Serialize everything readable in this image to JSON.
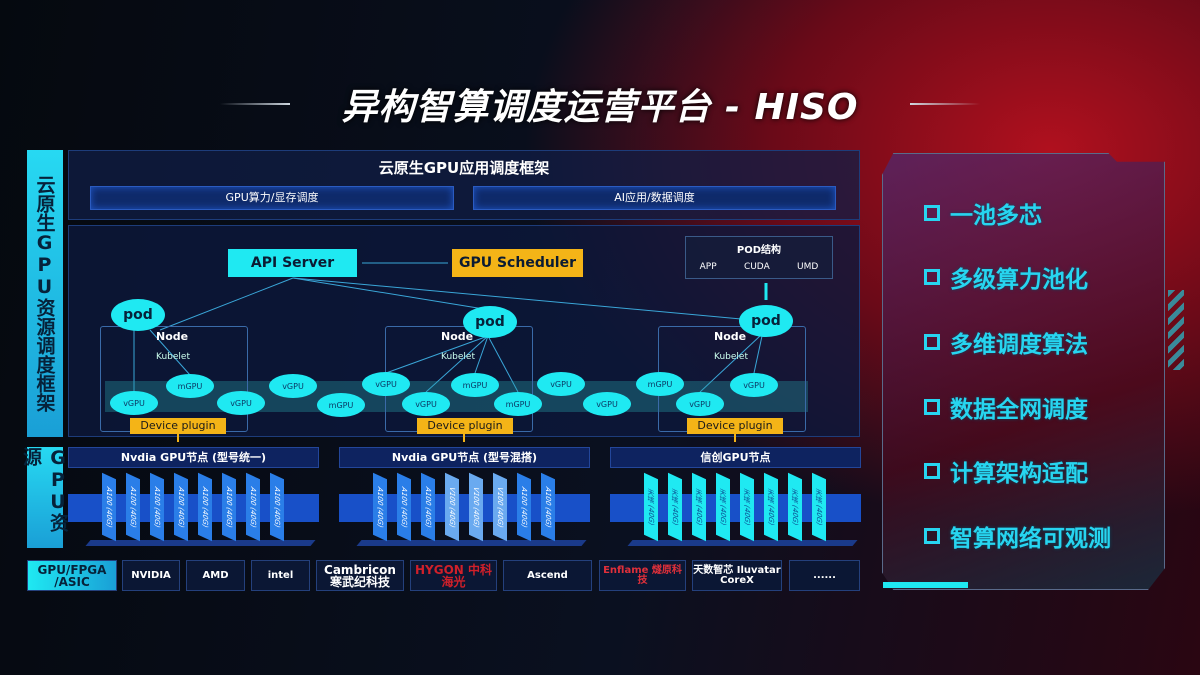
{
  "title": "异构智算调度运营平台 - HISO",
  "side_labels": {
    "framework": "云原生GPU资源调度框架",
    "resources": "GPU资源"
  },
  "app_framework": {
    "title": "云原生GPU应用调度框架",
    "left": "GPU算力/显存调度",
    "right": "AI应用/数据调度"
  },
  "control": {
    "api_server": "API Server",
    "gpu_scheduler": "GPU Scheduler"
  },
  "pod_structure": {
    "title": "POD结构",
    "items": [
      "APP",
      "CUDA",
      "UMD"
    ]
  },
  "node": {
    "label": "Node",
    "kubelet": "Kubelet",
    "pod": "pod",
    "device_plugin": "Device plugin"
  },
  "gpu_units": [
    "vGPU",
    "mGPU",
    "vGPU",
    "vGPU",
    "mGPU",
    "vGPU",
    "vGPU",
    "mGPU",
    "mGPU",
    "vGPU",
    "vGPU",
    "mGPU",
    "vGPU",
    "vGPU"
  ],
  "gpu_nodes": [
    {
      "title": "Nvdia GPU节点 (型号统一)",
      "cards": [
        "A100 (40G)",
        "A100 (40G)",
        "A100 (40G)",
        "A100 (40G)",
        "A100 (40G)",
        "A100 (40G)",
        "A100 (40G)",
        "A100 (40G)"
      ]
    },
    {
      "title": "Nvdia GPU节点 (型号混搭)",
      "cards": [
        "A100 (40G)",
        "A100 (40G)",
        "A100 (40G)",
        "V100 (40G)",
        "V100 (40G)",
        "V100 (40G)",
        "A100 (40G)",
        "A100 (40G)"
      ]
    },
    {
      "title": "信创GPU节点",
      "cards": [
        "天垓 (40G)",
        "天垓 (40G)",
        "天垓 (40G)",
        "天垓 (40G)",
        "天垓 (40G)",
        "天垓 (40G)",
        "天垓 (40G)",
        "天垓 (40G)"
      ]
    }
  ],
  "vendors": {
    "label": "GPU/FPGA /ASIC",
    "items": [
      "NVIDIA",
      "AMD",
      "intel",
      "Cambricon 寒武纪科技",
      "HYGON 中科海光",
      "Ascend",
      "Enflame 燧原科技",
      "天数智芯 Iluvatar CoreX",
      "......"
    ]
  },
  "features": [
    "一池多芯",
    "多级算力池化",
    "多维调度算法",
    "数据全网调度",
    "计算架构适配",
    "智算网络可观测"
  ],
  "colors": {
    "cyan": "#1fe9f2",
    "yellow": "#f4b417",
    "blue": "#1850c8",
    "red": "#b0101e"
  }
}
